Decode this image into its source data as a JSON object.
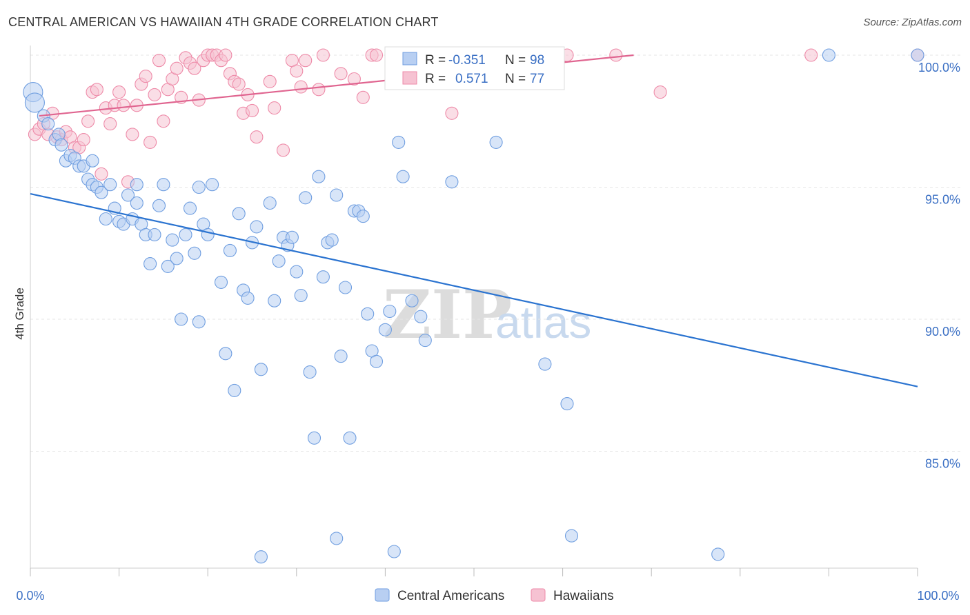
{
  "title": "CENTRAL AMERICAN VS HAWAIIAN 4TH GRADE CORRELATION CHART",
  "source": "Source: ZipAtlas.com",
  "watermark": {
    "zip": "ZIP",
    "atlas": "atlas"
  },
  "colors": {
    "blue": "#6f9ee0",
    "blue_line": "#2a73d0",
    "blue_fill": "#b8cff2",
    "pink": "#ee8aa8",
    "pink_line": "#e06590",
    "pink_fill": "#f6c2d2",
    "value_text": "#3a6fc4"
  },
  "legend_box": {
    "rows": [
      {
        "r_label": "R =",
        "r_value": "-0.351",
        "n_label": "N =",
        "n_value": "98"
      },
      {
        "r_label": "R =",
        "r_value": "0.571",
        "n_label": "N =",
        "n_value": "77"
      }
    ]
  },
  "bottom_legend": [
    "Central Americans",
    "Hawaiians"
  ],
  "chart_data": {
    "type": "scatter",
    "title": "CENTRAL AMERICAN VS HAWAIIAN 4TH GRADE CORRELATION CHART",
    "xlabel": "",
    "ylabel": "4th Grade",
    "xlim": [
      0,
      100
    ],
    "ylim": [
      80.5,
      100.4
    ],
    "x_tick_labels": [
      "0.0%",
      "100.0%"
    ],
    "y_ticks": [
      100,
      95,
      90,
      85
    ],
    "y_tick_labels": [
      "100.0%",
      "95.0%",
      "90.0%",
      "85.0%"
    ],
    "grid": true,
    "legend_position": "bottom",
    "series": [
      {
        "name": "Central Americans",
        "r": -0.351,
        "n": 98,
        "trend": {
          "x": [
            0,
            100
          ],
          "y": [
            94.75,
            87.45
          ]
        },
        "points": [
          [
            0.3,
            98.6
          ],
          [
            0.5,
            98.2
          ],
          [
            1.5,
            97.7
          ],
          [
            2.0,
            97.4
          ],
          [
            2.8,
            96.8
          ],
          [
            3.2,
            97.0
          ],
          [
            3.5,
            96.6
          ],
          [
            4.0,
            96.0
          ],
          [
            4.5,
            96.2
          ],
          [
            5.0,
            96.1
          ],
          [
            5.5,
            95.8
          ],
          [
            6.0,
            95.8
          ],
          [
            6.5,
            95.3
          ],
          [
            7.0,
            95.1
          ],
          [
            7.5,
            95.0
          ],
          [
            8.0,
            94.8
          ],
          [
            8.5,
            93.8
          ],
          [
            9.0,
            95.1
          ],
          [
            9.5,
            94.2
          ],
          [
            10.0,
            93.7
          ],
          [
            10.5,
            93.6
          ],
          [
            11.0,
            94.7
          ],
          [
            11.5,
            93.8
          ],
          [
            12.0,
            94.4
          ],
          [
            12.5,
            93.6
          ],
          [
            13.0,
            93.2
          ],
          [
            13.5,
            92.1
          ],
          [
            14.0,
            93.2
          ],
          [
            14.5,
            94.3
          ],
          [
            15.0,
            95.1
          ],
          [
            15.5,
            92.0
          ],
          [
            16.0,
            93.0
          ],
          [
            16.5,
            92.3
          ],
          [
            17.0,
            90.0
          ],
          [
            17.5,
            93.2
          ],
          [
            18.0,
            94.2
          ],
          [
            18.5,
            92.5
          ],
          [
            19.0,
            95.0
          ],
          [
            19.5,
            93.6
          ],
          [
            20.0,
            93.2
          ],
          [
            20.5,
            95.1
          ],
          [
            21.5,
            91.4
          ],
          [
            22.0,
            88.7
          ],
          [
            22.5,
            92.6
          ],
          [
            23.0,
            87.3
          ],
          [
            23.5,
            94.0
          ],
          [
            24.0,
            91.1
          ],
          [
            24.5,
            90.8
          ],
          [
            25.0,
            92.9
          ],
          [
            25.5,
            93.5
          ],
          [
            26.0,
            88.1
          ],
          [
            27.0,
            94.4
          ],
          [
            27.5,
            90.7
          ],
          [
            28.0,
            92.2
          ],
          [
            28.5,
            93.1
          ],
          [
            29.0,
            92.8
          ],
          [
            29.5,
            93.1
          ],
          [
            30.0,
            91.8
          ],
          [
            30.5,
            90.9
          ],
          [
            31.0,
            94.6
          ],
          [
            31.5,
            88.0
          ],
          [
            32.0,
            85.5
          ],
          [
            32.5,
            95.4
          ],
          [
            33.0,
            91.6
          ],
          [
            33.5,
            92.9
          ],
          [
            34.0,
            93.0
          ],
          [
            34.5,
            94.7
          ],
          [
            35.0,
            88.6
          ],
          [
            35.5,
            91.2
          ],
          [
            36.0,
            85.5
          ],
          [
            36.5,
            94.1
          ],
          [
            37.0,
            94.1
          ],
          [
            37.5,
            93.9
          ],
          [
            38.0,
            90.2
          ],
          [
            38.5,
            88.8
          ],
          [
            39.0,
            88.4
          ],
          [
            40.0,
            89.6
          ],
          [
            40.5,
            90.3
          ],
          [
            41.5,
            96.7
          ],
          [
            42.0,
            95.4
          ],
          [
            43.0,
            90.7
          ],
          [
            44.0,
            90.1
          ],
          [
            44.5,
            89.2
          ],
          [
            47.5,
            95.2
          ],
          [
            48.0,
            100.0
          ],
          [
            52.5,
            96.7
          ],
          [
            58.0,
            88.3
          ],
          [
            60.5,
            86.8
          ],
          [
            61.0,
            81.8
          ],
          [
            77.5,
            81.1
          ],
          [
            90.0,
            100.0
          ],
          [
            100.0,
            100.0
          ],
          [
            34.5,
            81.7
          ],
          [
            41.0,
            81.2
          ],
          [
            26.0,
            81.0
          ],
          [
            19.0,
            89.9
          ],
          [
            12.0,
            95.1
          ],
          [
            7.0,
            96.0
          ]
        ]
      },
      {
        "name": "Hawaiians",
        "r": 0.571,
        "n": 77,
        "trend": {
          "x": [
            1.0,
            68.0
          ],
          "y": [
            97.7,
            100.0
          ]
        },
        "points": [
          [
            0.5,
            97.0
          ],
          [
            1.0,
            97.2
          ],
          [
            1.5,
            97.4
          ],
          [
            2.0,
            97.0
          ],
          [
            2.5,
            97.8
          ],
          [
            3.0,
            96.9
          ],
          [
            3.5,
            96.8
          ],
          [
            4.0,
            97.1
          ],
          [
            4.5,
            96.9
          ],
          [
            5.0,
            96.5
          ],
          [
            5.5,
            96.5
          ],
          [
            6.0,
            96.8
          ],
          [
            6.5,
            97.5
          ],
          [
            7.0,
            98.6
          ],
          [
            7.5,
            98.7
          ],
          [
            8.0,
            95.5
          ],
          [
            8.5,
            98.0
          ],
          [
            9.0,
            97.4
          ],
          [
            9.5,
            98.1
          ],
          [
            10.0,
            98.6
          ],
          [
            10.5,
            98.1
          ],
          [
            11.0,
            95.2
          ],
          [
            11.5,
            97.0
          ],
          [
            12.0,
            98.1
          ],
          [
            12.5,
            98.9
          ],
          [
            13.0,
            99.2
          ],
          [
            13.5,
            96.7
          ],
          [
            14.0,
            98.5
          ],
          [
            14.5,
            99.8
          ],
          [
            15.0,
            97.5
          ],
          [
            15.5,
            98.7
          ],
          [
            16.0,
            99.1
          ],
          [
            16.5,
            99.5
          ],
          [
            17.0,
            98.4
          ],
          [
            17.5,
            99.9
          ],
          [
            18.0,
            99.7
          ],
          [
            18.5,
            99.5
          ],
          [
            19.0,
            98.3
          ],
          [
            19.5,
            99.8
          ],
          [
            20.0,
            100.0
          ],
          [
            20.5,
            100.0
          ],
          [
            21.0,
            100.0
          ],
          [
            21.5,
            99.8
          ],
          [
            22.0,
            100.0
          ],
          [
            22.5,
            99.3
          ],
          [
            23.0,
            99.0
          ],
          [
            23.5,
            98.9
          ],
          [
            24.0,
            97.8
          ],
          [
            24.5,
            98.5
          ],
          [
            25.0,
            97.9
          ],
          [
            25.5,
            96.9
          ],
          [
            27.0,
            99.0
          ],
          [
            27.5,
            98.0
          ],
          [
            28.5,
            96.4
          ],
          [
            29.5,
            99.8
          ],
          [
            30.0,
            99.4
          ],
          [
            30.5,
            98.8
          ],
          [
            31.0,
            99.8
          ],
          [
            32.5,
            98.7
          ],
          [
            33.0,
            100.0
          ],
          [
            35.0,
            99.3
          ],
          [
            36.5,
            99.1
          ],
          [
            37.5,
            98.4
          ],
          [
            38.5,
            100.0
          ],
          [
            39.0,
            100.0
          ],
          [
            42.0,
            100.0
          ],
          [
            45.0,
            100.0
          ],
          [
            47.5,
            97.8
          ],
          [
            48.5,
            100.0
          ],
          [
            50.0,
            100.0
          ],
          [
            53.0,
            99.1
          ],
          [
            57.5,
            100.0
          ],
          [
            60.5,
            100.0
          ],
          [
            66.0,
            100.0
          ],
          [
            71.0,
            98.6
          ],
          [
            88.0,
            100.0
          ],
          [
            100.0,
            100.0
          ]
        ]
      }
    ]
  }
}
